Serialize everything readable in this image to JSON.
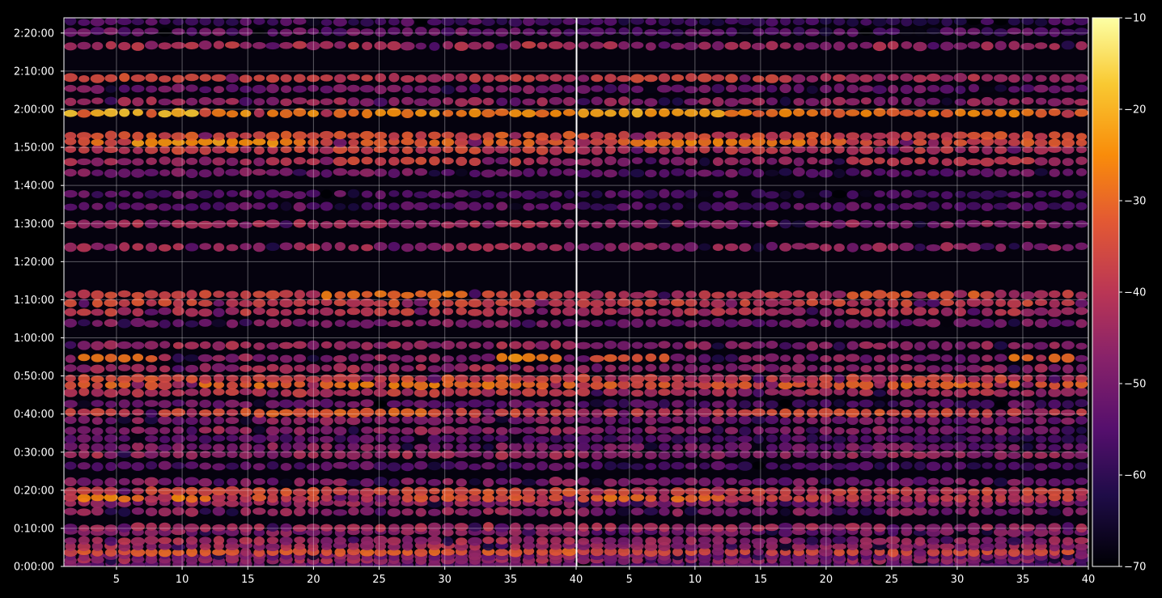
{
  "chart_data": {
    "type": "heatmap",
    "title": "",
    "xlabel": "",
    "ylabel": "",
    "panels": [
      {
        "name": "",
        "xlim": [
          1,
          40
        ],
        "xticks": [
          5,
          10,
          15,
          20,
          25,
          30,
          35,
          40
        ]
      },
      {
        "name": "",
        "xlim": [
          1,
          40
        ],
        "xticks": [
          5,
          10,
          15,
          20,
          25,
          30,
          35,
          40
        ]
      }
    ],
    "y_axis": {
      "unit": "time",
      "ylim_seconds": [
        0,
        8640
      ],
      "ticks_seconds": [
        0,
        600,
        1200,
        1800,
        2400,
        3000,
        3600,
        4200,
        4800,
        5400,
        6000,
        6600,
        7200,
        7800,
        8400
      ],
      "tick_labels": [
        "0:00:00",
        "0:10:00",
        "0:20:00",
        "0:30:00",
        "0:40:00",
        "0:50:00",
        "1:00:00",
        "1:10:00",
        "1:20:00",
        "1:30:00",
        "1:40:00",
        "1:50:00",
        "2:00:00",
        "2:10:00",
        "2:20:00"
      ]
    },
    "colorbar": {
      "colormap": "inferno",
      "range": [
        -70,
        -10
      ],
      "ticks": [
        -70,
        -60,
        -50,
        -40,
        -30,
        -20,
        -10
      ],
      "tick_labels": [
        "−70",
        "−60",
        "−50",
        "−40",
        "−30",
        "−20",
        "−10"
      ]
    },
    "grid": true,
    "bands": [
      {
        "t": 30,
        "level": -52,
        "hot": []
      },
      {
        "t": 100,
        "level": -44,
        "hot": []
      },
      {
        "t": 165,
        "level": -48,
        "hot": []
      },
      {
        "t": 230,
        "level": -36,
        "hot": [
          [
            2,
            40,
            -32
          ]
        ]
      },
      {
        "t": 320,
        "level": -44,
        "hot": []
      },
      {
        "t": 405,
        "level": -44,
        "hot": []
      },
      {
        "t": 545,
        "level": -48,
        "hot": []
      },
      {
        "t": 615,
        "level": -42,
        "hot": []
      },
      {
        "t": 860,
        "level": -46,
        "hot": []
      },
      {
        "t": 1000,
        "level": -46,
        "hot": []
      },
      {
        "t": 1075,
        "level": -36,
        "hot": [
          [
            2,
            12,
            -27
          ]
        ]
      },
      {
        "t": 1180,
        "level": -36,
        "hot": []
      },
      {
        "t": 1330,
        "level": -48,
        "hot": []
      },
      {
        "t": 1580,
        "level": -54,
        "hot": []
      },
      {
        "t": 1760,
        "level": -44,
        "hot": []
      },
      {
        "t": 1880,
        "level": -48,
        "hot": []
      },
      {
        "t": 2010,
        "level": -54,
        "hot": []
      },
      {
        "t": 2140,
        "level": -46,
        "hot": []
      },
      {
        "t": 2300,
        "level": -48,
        "hot": []
      },
      {
        "t": 2420,
        "level": -38,
        "hot": [
          [
            14,
            30,
            -31
          ]
        ]
      },
      {
        "t": 2560,
        "level": -52,
        "hot": []
      },
      {
        "t": 2740,
        "level": -40,
        "hot": []
      },
      {
        "t": 2860,
        "level": -32,
        "hot": [
          [
            20,
            40,
            -28
          ]
        ]
      },
      {
        "t": 2960,
        "level": -36,
        "hot": []
      },
      {
        "t": 3120,
        "level": -44,
        "hot": []
      },
      {
        "t": 3280,
        "level": -46,
        "hot": [
          [
            2,
            8,
            -30
          ],
          [
            34,
            39,
            -26
          ]
        ]
      },
      {
        "t": 3480,
        "level": -44,
        "hot": []
      },
      {
        "t": 3830,
        "level": -48,
        "hot": []
      },
      {
        "t": 4010,
        "level": -40,
        "hot": []
      },
      {
        "t": 4150,
        "level": -36,
        "hot": []
      },
      {
        "t": 4280,
        "level": -38,
        "hot": [
          [
            20,
            32,
            -29
          ]
        ]
      },
      {
        "t": 5030,
        "level": -44,
        "hot": []
      },
      {
        "t": 5390,
        "level": -44,
        "hot": []
      },
      {
        "t": 5670,
        "level": -52,
        "hot": []
      },
      {
        "t": 5860,
        "level": -54,
        "hot": []
      },
      {
        "t": 6200,
        "level": -50,
        "hot": []
      },
      {
        "t": 6380,
        "level": -44,
        "hot": [
          [
            22,
            36,
            -36
          ]
        ]
      },
      {
        "t": 6560,
        "level": -38,
        "hot": []
      },
      {
        "t": 6680,
        "level": -32,
        "hot": [
          [
            5,
            18,
            -24
          ]
        ]
      },
      {
        "t": 6780,
        "level": -34,
        "hot": []
      },
      {
        "t": 7140,
        "level": -26,
        "hot": [
          [
            1,
            12,
            -19
          ]
        ]
      },
      {
        "t": 7320,
        "level": -44,
        "hot": []
      },
      {
        "t": 7520,
        "level": -50,
        "hot": []
      },
      {
        "t": 7690,
        "level": -40,
        "hot": [
          [
            2,
            16,
            -34
          ]
        ]
      },
      {
        "t": 8200,
        "level": -42,
        "hot": []
      },
      {
        "t": 8420,
        "level": -52,
        "hot": []
      },
      {
        "t": 8580,
        "level": -56,
        "hot": []
      }
    ]
  }
}
